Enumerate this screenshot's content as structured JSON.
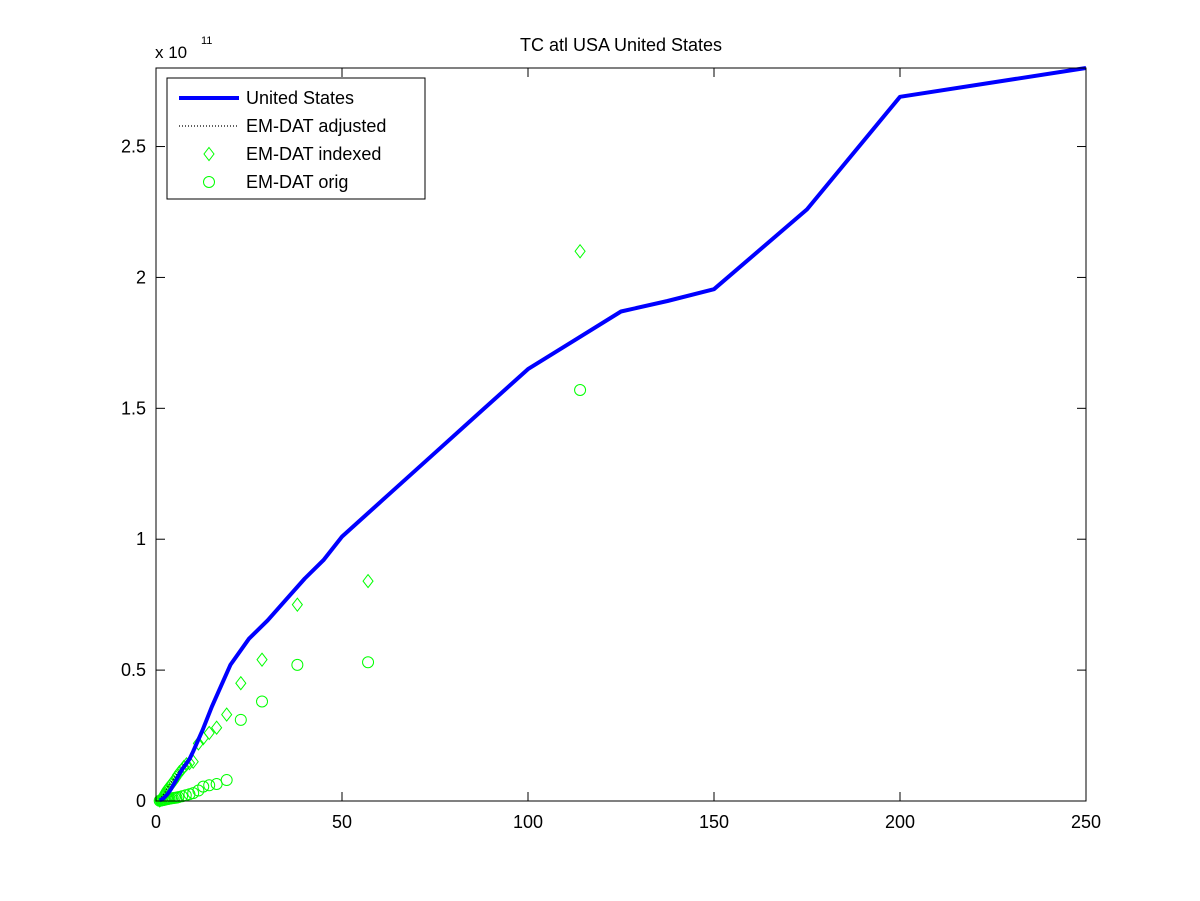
{
  "chart_data": {
    "type": "line",
    "title": "TC atl USA United States",
    "xlabel": "",
    "ylabel": "",
    "y_exponent_label": "x 10",
    "y_exponent": "11",
    "xlim": [
      0,
      250
    ],
    "ylim": [
      0,
      2.8
    ],
    "xticks": [
      0,
      50,
      100,
      150,
      200,
      250
    ],
    "xtick_labels": [
      "0",
      "50",
      "100",
      "150",
      "200",
      "250"
    ],
    "yticks": [
      0,
      0.5,
      1,
      1.5,
      2,
      2.5
    ],
    "ytick_labels": [
      "0",
      "0.5",
      "1",
      "1.5",
      "2",
      "2.5"
    ],
    "grid": false,
    "legend_position": "top-left",
    "series": [
      {
        "name": "United States",
        "kind": "line",
        "color": "#0000ff",
        "style": "solid",
        "x": [
          1,
          2,
          3,
          4,
          5,
          6,
          7,
          8,
          9,
          10,
          12.5,
          15,
          17.5,
          20,
          25,
          30,
          35,
          40,
          45,
          50,
          62.5,
          75,
          87.5,
          100,
          112.5,
          125,
          137.5,
          150,
          175,
          200,
          250
        ],
        "y": [
          0.002,
          0.01,
          0.025,
          0.045,
          0.07,
          0.095,
          0.12,
          0.14,
          0.16,
          0.19,
          0.27,
          0.36,
          0.44,
          0.52,
          0.62,
          0.69,
          0.77,
          0.85,
          0.92,
          1.01,
          1.17,
          1.33,
          1.49,
          1.65,
          1.76,
          1.87,
          1.91,
          1.955,
          2.26,
          2.69,
          2.8
        ]
      },
      {
        "name": "EM-DAT adjusted",
        "kind": "line",
        "color": "#000000",
        "style": "dotted",
        "x": [
          1,
          1.5,
          2,
          2.5,
          3,
          3.5,
          4,
          4.5,
          5,
          5.5,
          6,
          7,
          8
        ],
        "y": [
          0.005,
          0.015,
          0.025,
          0.035,
          0.05,
          0.06,
          0.07,
          0.08,
          0.09,
          0.1,
          0.11,
          0.13,
          0.15
        ]
      },
      {
        "name": "EM-DAT indexed",
        "kind": "marker",
        "marker": "diamond",
        "color": "#00ff00",
        "x": [
          1,
          1.2,
          1.4,
          1.6,
          1.8,
          2,
          2.2,
          2.4,
          2.6,
          2.8,
          3,
          3.3,
          3.6,
          4,
          4.3,
          4.7,
          5,
          5.4,
          5.8,
          6.3,
          7,
          7.5,
          8.2,
          9,
          10,
          11.4,
          12.7,
          14.3,
          16.3,
          19,
          22.8,
          28.5,
          38,
          57,
          114
        ],
        "y": [
          0.002,
          0.005,
          0.008,
          0.012,
          0.016,
          0.02,
          0.025,
          0.03,
          0.035,
          0.04,
          0.045,
          0.05,
          0.056,
          0.062,
          0.068,
          0.075,
          0.082,
          0.09,
          0.1,
          0.11,
          0.12,
          0.13,
          0.14,
          0.145,
          0.15,
          0.22,
          0.24,
          0.26,
          0.28,
          0.33,
          0.45,
          0.54,
          0.75,
          0.84,
          2.1
        ]
      },
      {
        "name": "EM-DAT orig",
        "kind": "marker",
        "marker": "circle",
        "color": "#00ff00",
        "x": [
          1,
          1.3,
          1.6,
          2,
          2.3,
          2.6,
          3,
          3.3,
          3.6,
          4,
          4.5,
          5,
          5.5,
          6,
          7,
          8,
          9,
          10,
          11.4,
          12.7,
          14.3,
          16.3,
          19,
          22.8,
          28.5,
          38,
          57,
          114
        ],
        "y": [
          0.001,
          0.002,
          0.003,
          0.004,
          0.005,
          0.006,
          0.007,
          0.008,
          0.009,
          0.01,
          0.011,
          0.012,
          0.013,
          0.015,
          0.018,
          0.022,
          0.026,
          0.03,
          0.04,
          0.055,
          0.06,
          0.065,
          0.08,
          0.31,
          0.38,
          0.52,
          0.53,
          1.57
        ]
      }
    ]
  }
}
